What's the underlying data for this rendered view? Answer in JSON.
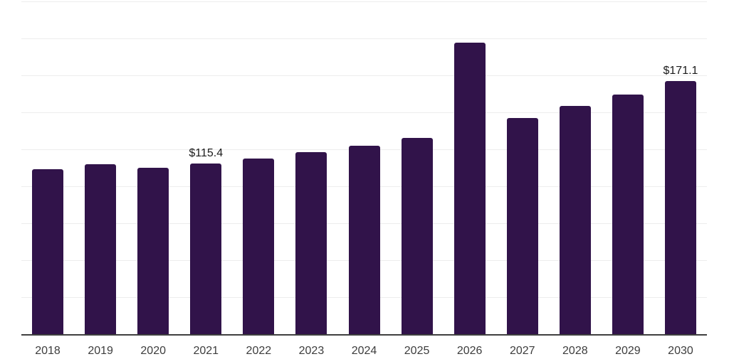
{
  "chart_data": {
    "type": "bar",
    "title": "",
    "xlabel": "",
    "ylabel": "",
    "categories": [
      "2018",
      "2019",
      "2020",
      "2021",
      "2022",
      "2023",
      "2024",
      "2025",
      "2026",
      "2027",
      "2028",
      "2029",
      "2030"
    ],
    "values": [
      111.5,
      114.8,
      112.4,
      115.4,
      118.6,
      123.0,
      127.3,
      132.6,
      197.0,
      146.1,
      154.1,
      162.0,
      171.1
    ],
    "data_labels": {
      "2021": "$115.4",
      "2030": "$171.1"
    },
    "ylim": [
      0,
      225
    ],
    "gridline_step": 25,
    "grid": true,
    "legend": false,
    "y_tick_labels_visible": false,
    "colors": {
      "bar": "#31134a",
      "gridline": "#ededed",
      "axis_line": "#3f3f3f",
      "tick_label": "#3d3d3d",
      "data_label": "#1b1b1b",
      "background": "#ffffff"
    }
  }
}
